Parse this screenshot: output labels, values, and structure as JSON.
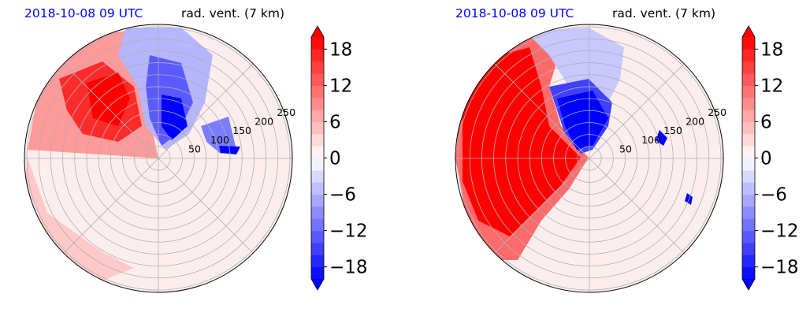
{
  "chart_data": [
    {
      "type": "heatmap",
      "projection": "polar",
      "timestamp": "2018-10-08 09 UTC",
      "field": "rad. vent. (7 km)",
      "radial_ticks": [
        50,
        100,
        150,
        200,
        250
      ],
      "rmax": 280,
      "colorbar": {
        "ticks": [
          "18",
          "12",
          "6",
          "0",
          "−6",
          "−12",
          "−18"
        ],
        "values": [
          18,
          12,
          6,
          0,
          -6,
          -12,
          -18
        ],
        "vmin": -20,
        "vmax": 20,
        "extend": "both"
      },
      "pattern": [
        {
          "sign": "positive",
          "strength": 18,
          "az_from": 235,
          "az_to": 300,
          "r_from": 20,
          "r_to": 260,
          "note": ""
        },
        {
          "sign": "negative",
          "strength": 18,
          "az_from": 320,
          "az_to": 60,
          "r_from": 20,
          "r_to": 210
        }
      ]
    },
    {
      "type": "heatmap",
      "projection": "polar",
      "timestamp": "2018-10-08 09 UTC",
      "field": "rad. vent. (7 km)",
      "radial_ticks": [
        50,
        100,
        150,
        200,
        250
      ],
      "rmax": 280,
      "colorbar": {
        "ticks": [
          "18",
          "12",
          "6",
          "0",
          "−6",
          "−12",
          "−18"
        ],
        "values": [
          18,
          12,
          6,
          0,
          -6,
          -12,
          -18
        ],
        "vmin": -20,
        "vmax": 20,
        "extend": "both"
      }
    }
  ],
  "colors": {
    "positive": "#ff0000",
    "negative": "#0000ff",
    "neutral": "#ffffff",
    "grid": "#b0b0b0",
    "timestamp": "#0000ff"
  }
}
